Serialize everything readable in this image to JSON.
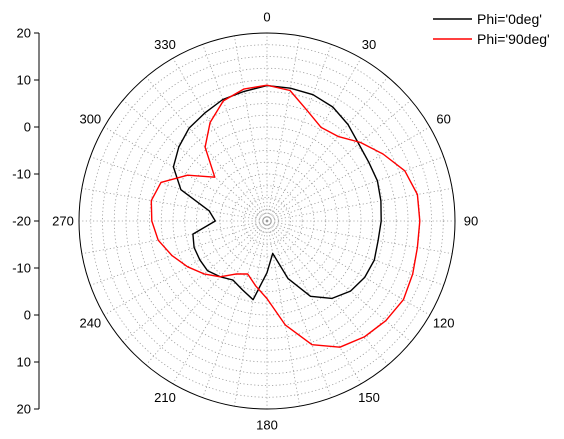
{
  "chart_data": {
    "type": "polar-line",
    "title": "",
    "angle_unit": "deg",
    "angle_direction": "clockwise",
    "zero_location": "top",
    "angular_ticks": [
      0,
      30,
      60,
      90,
      120,
      150,
      180,
      210,
      240,
      270,
      300,
      330
    ],
    "angular_tick_labels": [
      "0",
      "30",
      "60",
      "90",
      "120",
      "150",
      "180",
      "210",
      "240",
      "270",
      "300",
      "330"
    ],
    "radial_range": [
      -20,
      20
    ],
    "radial_ticks": [
      -20,
      -10,
      0,
      10,
      20
    ],
    "radial_axis_labels": [
      "20",
      "10",
      "0",
      "-10",
      "-20",
      "-10",
      "0",
      "10",
      "20"
    ],
    "grid": true,
    "legend_position": "top-right",
    "series": [
      {
        "name": "Phi='0deg'",
        "color": "#000000",
        "angles": [
          0,
          10,
          20,
          30,
          40,
          50,
          60,
          70,
          80,
          90,
          100,
          110,
          120,
          130,
          140,
          150,
          160,
          170,
          180,
          190,
          200,
          210,
          220,
          230,
          240,
          250,
          260,
          270,
          280,
          290,
          300,
          310,
          320,
          330,
          340,
          350,
          360
        ],
        "values": [
          8.8,
          8.7,
          8.6,
          8.0,
          6.8,
          5.5,
          5.0,
          5.0,
          4.6,
          4.3,
          4.0,
          4.3,
          4.0,
          3.2,
          1.5,
          -1.5,
          -7.0,
          -13.0,
          -9.0,
          -3.0,
          -4.5,
          -5.5,
          -4.5,
          -3.5,
          -3.5,
          -3.5,
          -4.0,
          -9.0,
          -7.5,
          -0.5,
          3.0,
          4.5,
          5.8,
          6.5,
          7.5,
          8.0,
          8.8
        ]
      },
      {
        "name": "Phi='90deg'",
        "color": "#ff0000",
        "angles": [
          0,
          10,
          20,
          30,
          40,
          50,
          60,
          70,
          80,
          90,
          100,
          110,
          120,
          130,
          140,
          150,
          160,
          170,
          180,
          190,
          200,
          210,
          220,
          230,
          240,
          250,
          260,
          270,
          280,
          290,
          300,
          310,
          320,
          330,
          340,
          350,
          360
        ],
        "values": [
          8.9,
          8.2,
          5.0,
          3.0,
          3.5,
          6.0,
          8.5,
          11.2,
          12.5,
          12.5,
          12.5,
          13.0,
          13.5,
          13.0,
          12.2,
          11.0,
          8.0,
          2.5,
          -3.5,
          -6.0,
          -8.0,
          -7.0,
          -4.5,
          -2.5,
          -0.5,
          1.5,
          3.5,
          4.5,
          5.0,
          4.0,
          -0.5,
          -5.5,
          0.5,
          4.2,
          7.2,
          8.5,
          8.9
        ]
      }
    ]
  }
}
